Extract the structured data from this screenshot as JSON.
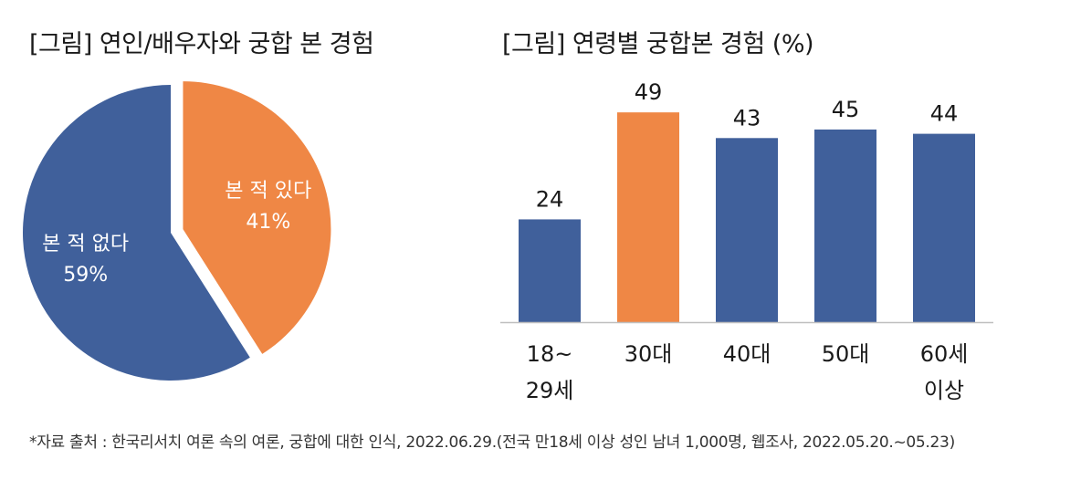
{
  "colors": {
    "blue": "#40609b",
    "orange": "#ef8745",
    "axis": "#bfbfbf",
    "text": "#1a1a1a"
  },
  "chart_data": [
    {
      "type": "pie",
      "title": "[그림] 연인/배우자와 궁합 본 경험",
      "slices": [
        {
          "label": "본 적 있다",
          "value": 41,
          "value_label": "41%",
          "color": "#ef8745",
          "exploded": true
        },
        {
          "label": "본 적 없다",
          "value": 59,
          "value_label": "59%",
          "color": "#40609b",
          "exploded": false
        }
      ]
    },
    {
      "type": "bar",
      "title": "[그림] 연령별 궁합본 경험 (%)",
      "categories": [
        {
          "line1": "18~",
          "line2": "29세"
        },
        {
          "line1": "30대",
          "line2": ""
        },
        {
          "line1": "40대",
          "line2": ""
        },
        {
          "line1": "50대",
          "line2": ""
        },
        {
          "line1": "60세",
          "line2": "이상"
        }
      ],
      "values": [
        24,
        49,
        43,
        45,
        44
      ],
      "colors": [
        "#40609b",
        "#ef8745",
        "#40609b",
        "#40609b",
        "#40609b"
      ],
      "ylim": [
        0,
        55
      ],
      "ylabel": "%"
    }
  ],
  "footnote": "*자료 출처 : 한국리서치 여론 속의 여론, 궁합에 대한 인식, 2022.06.29.(전국 만18세 이상 성인 남녀 1,000명, 웹조사, 2022.05.20.~05.23)"
}
